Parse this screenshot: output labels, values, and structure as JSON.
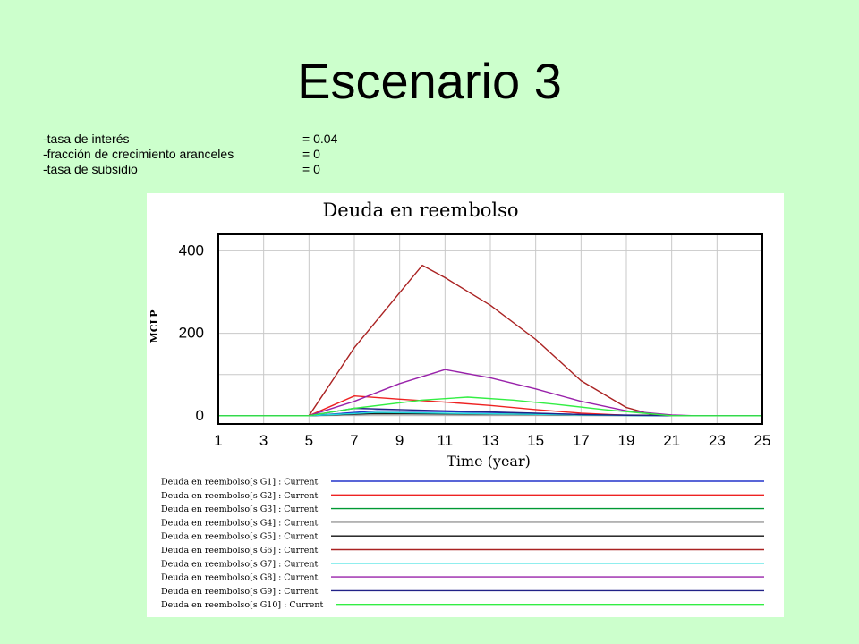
{
  "slide": {
    "title": "Escenario 3",
    "parameters": [
      {
        "name": "-tasa de interés",
        "value": "= 0.04"
      },
      {
        "name": "-fracción de crecimiento aranceles",
        "value": "= 0"
      },
      {
        "name": "-tasa de subsidio",
        "value": "= 0"
      }
    ]
  },
  "chart_data": {
    "type": "line",
    "title": "Deuda en reembolso",
    "xlabel": "Time (year)",
    "ylabel": "MCLP",
    "xlim": [
      1,
      25
    ],
    "ylim": [
      -20,
      440
    ],
    "x_ticks": [
      1,
      3,
      5,
      7,
      9,
      11,
      13,
      15,
      17,
      19,
      21,
      23,
      25
    ],
    "y_ticks": [
      0,
      200,
      400
    ],
    "grid": true,
    "legend_placement": "bottom",
    "series": [
      {
        "name": "Deuda en reembolso[s G1] : Current",
        "color": "#2233cc",
        "points": [
          [
            1,
            0
          ],
          [
            5,
            0
          ],
          [
            8,
            12
          ],
          [
            11,
            10
          ],
          [
            14,
            7
          ],
          [
            17,
            3
          ],
          [
            20,
            1
          ],
          [
            21,
            0
          ],
          [
            25,
            0
          ]
        ]
      },
      {
        "name": "Deuda en reembolso[s G2] : Current",
        "color": "#ee2222",
        "points": [
          [
            1,
            0
          ],
          [
            5,
            0
          ],
          [
            7,
            48
          ],
          [
            9,
            40
          ],
          [
            11,
            33
          ],
          [
            13,
            25
          ],
          [
            15,
            15
          ],
          [
            17,
            6
          ],
          [
            19,
            1
          ],
          [
            21,
            0
          ],
          [
            25,
            0
          ]
        ]
      },
      {
        "name": "Deuda en reembolso[s G3] : Current",
        "color": "#009933",
        "points": [
          [
            1,
            0
          ],
          [
            5,
            0
          ],
          [
            7,
            5
          ],
          [
            10,
            4
          ],
          [
            13,
            3
          ],
          [
            16,
            2
          ],
          [
            19,
            1
          ],
          [
            21,
            0
          ],
          [
            25,
            0
          ]
        ]
      },
      {
        "name": "Deuda en reembolso[s G4] : Current",
        "color": "#999999",
        "points": [
          [
            1,
            0
          ],
          [
            5,
            0
          ],
          [
            8,
            3
          ],
          [
            12,
            2
          ],
          [
            16,
            1
          ],
          [
            20,
            0
          ],
          [
            25,
            0
          ]
        ]
      },
      {
        "name": "Deuda en reembolso[s G5] : Current",
        "color": "#111111",
        "points": [
          [
            1,
            0
          ],
          [
            5,
            0
          ],
          [
            8,
            6
          ],
          [
            11,
            5
          ],
          [
            14,
            4
          ],
          [
            17,
            2
          ],
          [
            20,
            1
          ],
          [
            21,
            0
          ],
          [
            25,
            0
          ]
        ]
      },
      {
        "name": "Deuda en reembolso[s G6] : Current",
        "color": "#aa2222",
        "points": [
          [
            1,
            0
          ],
          [
            5,
            0
          ],
          [
            7,
            165
          ],
          [
            10,
            365
          ],
          [
            11,
            335
          ],
          [
            13,
            268
          ],
          [
            15,
            185
          ],
          [
            17,
            85
          ],
          [
            19,
            20
          ],
          [
            20,
            5
          ],
          [
            21,
            0
          ],
          [
            25,
            0
          ]
        ]
      },
      {
        "name": "Deuda en reembolso[s G7] : Current",
        "color": "#22dddd",
        "points": [
          [
            1,
            0
          ],
          [
            5,
            0
          ],
          [
            8,
            8
          ],
          [
            11,
            6
          ],
          [
            14,
            4
          ],
          [
            17,
            2
          ],
          [
            20,
            0
          ],
          [
            25,
            0
          ]
        ]
      },
      {
        "name": "Deuda en reembolso[s G8] : Current",
        "color": "#9922aa",
        "points": [
          [
            1,
            0
          ],
          [
            5,
            0
          ],
          [
            7,
            35
          ],
          [
            9,
            78
          ],
          [
            11,
            112
          ],
          [
            13,
            92
          ],
          [
            15,
            65
          ],
          [
            17,
            35
          ],
          [
            19,
            12
          ],
          [
            21,
            2
          ],
          [
            22,
            0
          ],
          [
            25,
            0
          ]
        ]
      },
      {
        "name": "Deuda en reembolso[s G9] : Current",
        "color": "#222288",
        "points": [
          [
            1,
            0
          ],
          [
            5,
            0
          ],
          [
            7,
            18
          ],
          [
            9,
            15
          ],
          [
            11,
            12
          ],
          [
            13,
            9
          ],
          [
            15,
            6
          ],
          [
            17,
            3
          ],
          [
            19,
            1
          ],
          [
            21,
            0
          ],
          [
            25,
            0
          ]
        ]
      },
      {
        "name": "Deuda en reembolso[s G10] : Current",
        "color": "#33ee44",
        "points": [
          [
            1,
            0
          ],
          [
            5,
            0
          ],
          [
            7,
            18
          ],
          [
            10,
            38
          ],
          [
            12,
            45
          ],
          [
            14,
            38
          ],
          [
            16,
            27
          ],
          [
            18,
            15
          ],
          [
            20,
            5
          ],
          [
            21,
            0
          ],
          [
            25,
            0
          ]
        ]
      }
    ]
  }
}
